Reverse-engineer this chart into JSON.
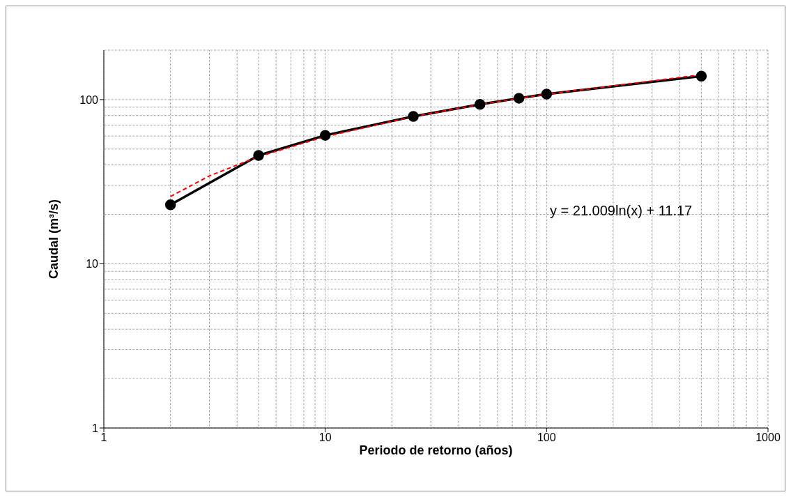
{
  "chart_data": {
    "type": "line",
    "xlabel": "Periodo de retorno (años)",
    "ylabel": "Caudal (m³/s)",
    "log": "xy",
    "xlim": [
      1,
      1000
    ],
    "xticks": [
      1,
      10,
      100,
      1000
    ],
    "ylim": [
      1,
      200
    ],
    "yticks": [
      1,
      10,
      100
    ],
    "grid": true,
    "marker": "circle",
    "line_style": "solid",
    "series": [
      {
        "color": "#000000",
        "x": [
          2,
          5,
          10,
          25,
          50,
          75,
          100,
          500
        ],
        "values": [
          22.9,
          45.7,
          60.6,
          79,
          93.6,
          102,
          108,
          139
        ]
      },
      {
        "type": "line",
        "color": "#ff0000",
        "marker": "none",
        "line_style": "dashed",
        "x": [
          2,
          3,
          5,
          10,
          25,
          50,
          100,
          500
        ],
        "values": [
          25.7,
          34.3,
          45,
          59.5,
          78.8,
          93.4,
          107.9,
          141.7
        ]
      }
    ],
    "annotations": [
      "y = 21.009ln(x) + 11.17"
    ]
  }
}
